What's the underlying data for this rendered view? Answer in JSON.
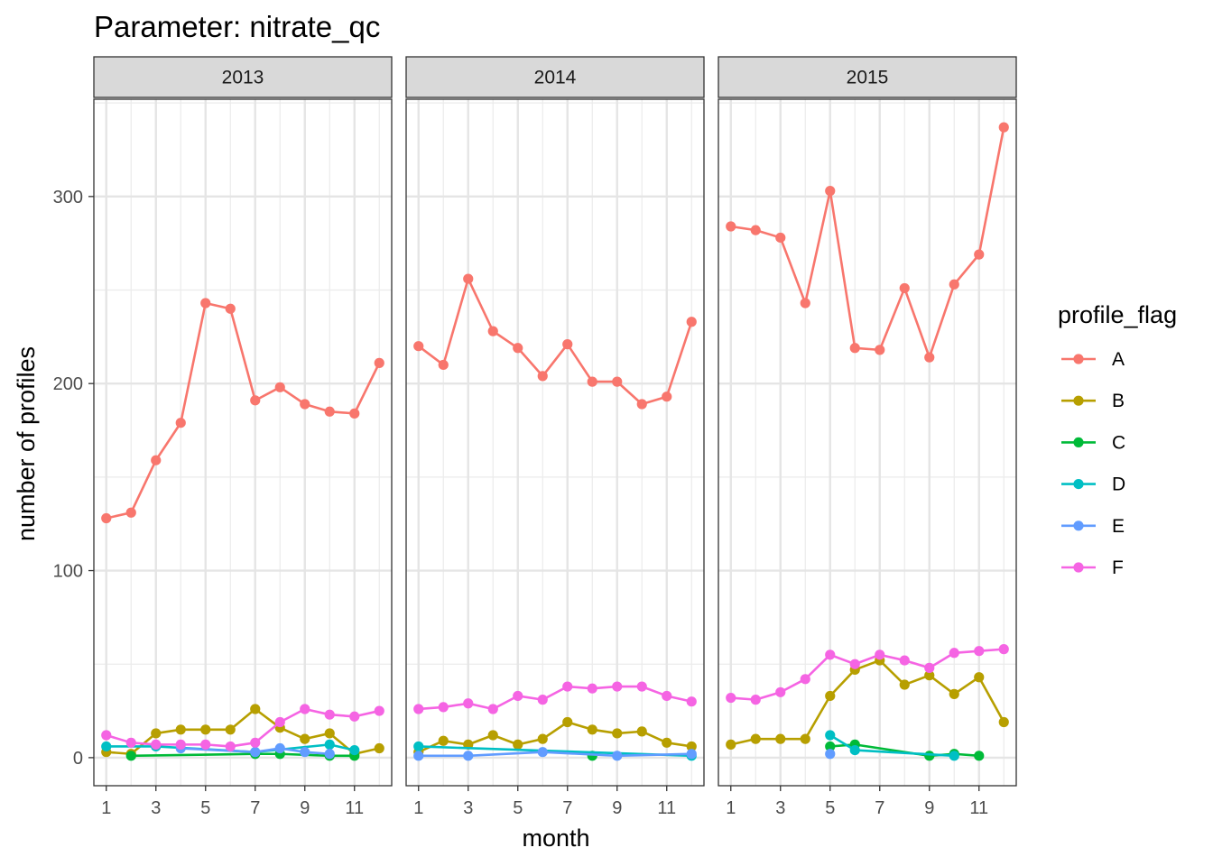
{
  "title": "Parameter:  nitrate_qc",
  "chart_data": {
    "type": "line",
    "facet_variable": "year",
    "facets": [
      "2013",
      "2014",
      "2015"
    ],
    "xlabel": "month",
    "ylabel": "number of profiles",
    "xlim": [
      0.5,
      12.5
    ],
    "ylim": [
      -15,
      352
    ],
    "x_ticks": [
      1,
      3,
      5,
      7,
      9,
      11
    ],
    "y_ticks": [
      0,
      100,
      200,
      300
    ],
    "grid": true,
    "markers": true,
    "legend": {
      "title": "profile_flag",
      "position": "right"
    },
    "series": [
      {
        "name": "A",
        "color": "#F8766D",
        "panels": [
          [
            [
              1,
              128
            ],
            [
              2,
              131
            ],
            [
              3,
              159
            ],
            [
              4,
              179
            ],
            [
              5,
              243
            ],
            [
              6,
              240
            ],
            [
              7,
              191
            ],
            [
              8,
              198
            ],
            [
              9,
              189
            ],
            [
              10,
              185
            ],
            [
              11,
              184
            ],
            [
              12,
              211
            ]
          ],
          [
            [
              1,
              220
            ],
            [
              2,
              210
            ],
            [
              3,
              256
            ],
            [
              4,
              228
            ],
            [
              5,
              219
            ],
            [
              6,
              204
            ],
            [
              7,
              221
            ],
            [
              8,
              201
            ],
            [
              9,
              201
            ],
            [
              10,
              189
            ],
            [
              11,
              193
            ],
            [
              12,
              233
            ]
          ],
          [
            [
              1,
              284
            ],
            [
              2,
              282
            ],
            [
              3,
              278
            ],
            [
              4,
              243
            ],
            [
              5,
              303
            ],
            [
              6,
              219
            ],
            [
              7,
              218
            ],
            [
              8,
              251
            ],
            [
              9,
              214
            ],
            [
              10,
              253
            ],
            [
              11,
              269
            ],
            [
              12,
              337
            ]
          ]
        ]
      },
      {
        "name": "B",
        "color": "#B79F00",
        "panels": [
          [
            [
              1,
              3
            ],
            [
              2,
              2
            ],
            [
              3,
              13
            ],
            [
              4,
              15
            ],
            [
              5,
              15
            ],
            [
              6,
              15
            ],
            [
              7,
              26
            ],
            [
              8,
              16
            ],
            [
              9,
              10
            ],
            [
              10,
              13
            ],
            [
              11,
              2
            ],
            [
              12,
              5
            ]
          ],
          [
            [
              1,
              3
            ],
            [
              2,
              9
            ],
            [
              3,
              7
            ],
            [
              4,
              12
            ],
            [
              5,
              7
            ],
            [
              6,
              10
            ],
            [
              7,
              19
            ],
            [
              8,
              15
            ],
            [
              9,
              13
            ],
            [
              10,
              14
            ],
            [
              11,
              8
            ],
            [
              12,
              6
            ]
          ],
          [
            [
              1,
              7
            ],
            [
              2,
              10
            ],
            [
              3,
              10
            ],
            [
              4,
              10
            ],
            [
              5,
              33
            ],
            [
              6,
              47
            ],
            [
              7,
              52
            ],
            [
              8,
              39
            ],
            [
              9,
              44
            ],
            [
              10,
              34
            ],
            [
              11,
              43
            ],
            [
              12,
              19
            ]
          ]
        ]
      },
      {
        "name": "C",
        "color": "#00BA38",
        "panels": [
          [
            [
              2,
              1
            ],
            [
              7,
              2
            ],
            [
              8,
              2
            ],
            [
              10,
              1
            ],
            [
              11,
              1
            ]
          ],
          [
            [
              8,
              1
            ]
          ],
          [
            [
              5,
              6
            ],
            [
              6,
              7
            ],
            [
              9,
              1
            ],
            [
              10,
              2
            ],
            [
              11,
              1
            ]
          ]
        ]
      },
      {
        "name": "D",
        "color": "#00BFC4",
        "panels": [
          [
            [
              1,
              6
            ],
            [
              3,
              6
            ],
            [
              7,
              3
            ],
            [
              10,
              7
            ],
            [
              11,
              4
            ]
          ],
          [
            [
              1,
              6
            ],
            [
              12,
              1
            ]
          ],
          [
            [
              5,
              12
            ],
            [
              6,
              4
            ],
            [
              10,
              1
            ]
          ]
        ]
      },
      {
        "name": "E",
        "color": "#619CFF",
        "panels": [
          [
            [
              4,
              5
            ],
            [
              7,
              3
            ],
            [
              8,
              5
            ],
            [
              9,
              3
            ],
            [
              10,
              2
            ]
          ],
          [
            [
              1,
              1
            ],
            [
              3,
              1
            ],
            [
              6,
              3
            ],
            [
              9,
              1
            ],
            [
              12,
              2
            ]
          ],
          [
            [
              5,
              2
            ]
          ]
        ]
      },
      {
        "name": "F",
        "color": "#F564E3",
        "panels": [
          [
            [
              1,
              12
            ],
            [
              2,
              8
            ],
            [
              3,
              7
            ],
            [
              4,
              7
            ],
            [
              5,
              7
            ],
            [
              6,
              6
            ],
            [
              7,
              8
            ],
            [
              8,
              19
            ],
            [
              9,
              26
            ],
            [
              10,
              23
            ],
            [
              11,
              22
            ],
            [
              12,
              25
            ]
          ],
          [
            [
              1,
              26
            ],
            [
              2,
              27
            ],
            [
              3,
              29
            ],
            [
              4,
              26
            ],
            [
              5,
              33
            ],
            [
              6,
              31
            ],
            [
              7,
              38
            ],
            [
              8,
              37
            ],
            [
              9,
              38
            ],
            [
              10,
              38
            ],
            [
              11,
              33
            ],
            [
              12,
              30
            ]
          ],
          [
            [
              1,
              32
            ],
            [
              2,
              31
            ],
            [
              3,
              35
            ],
            [
              4,
              42
            ],
            [
              5,
              55
            ],
            [
              6,
              50
            ],
            [
              7,
              55
            ],
            [
              8,
              52
            ],
            [
              9,
              48
            ],
            [
              10,
              56
            ],
            [
              11,
              57
            ],
            [
              12,
              58
            ]
          ]
        ]
      }
    ]
  }
}
